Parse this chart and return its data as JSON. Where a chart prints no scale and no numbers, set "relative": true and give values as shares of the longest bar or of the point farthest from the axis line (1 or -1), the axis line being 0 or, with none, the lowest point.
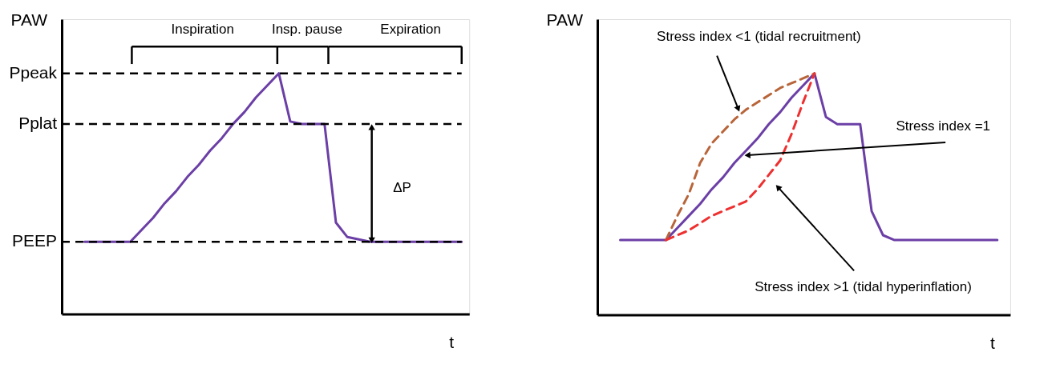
{
  "chart_data": [
    {
      "type": "line",
      "relative": true,
      "ylabel": "PAW",
      "xlabel": "t",
      "tick_labels": false,
      "grid": false,
      "categories": [
        null,
        null,
        null,
        null,
        null,
        null,
        null,
        null,
        null,
        null,
        null,
        null,
        null,
        null,
        null,
        null,
        null,
        null,
        null,
        null,
        null,
        null,
        null,
        null,
        null,
        null,
        null,
        null,
        null,
        null,
        null,
        null,
        null,
        null,
        null,
        null
      ],
      "series": [
        {
          "color": "#6b3fa6",
          "line_style": "solid",
          "values": [
            null,
            null,
            0.3,
            0.3,
            0.3,
            0.3,
            0.3,
            0.35,
            0.4,
            0.46,
            0.51,
            0.57,
            0.62,
            0.68,
            0.73,
            0.79,
            0.84,
            0.9,
            0.95,
            1.0,
            0.8,
            0.79,
            0.79,
            0.79,
            0.38,
            0.32,
            0.31,
            0.3,
            0.3,
            0.3,
            0.3,
            0.3,
            0.3,
            0.3,
            0.3,
            0.3
          ]
        }
      ],
      "ref_lines": [
        {
          "axis": "y",
          "value": 1.0,
          "label": "Ppeak",
          "color": "#000000",
          "line_style": "dashed"
        },
        {
          "axis": "y",
          "value": 0.79,
          "label": "Pplat",
          "color": "#000000",
          "line_style": "dashed"
        },
        {
          "axis": "y",
          "value": 0.3,
          "label": "PEEP",
          "color": "#000000",
          "line_style": "dashed"
        }
      ],
      "annotations": [
        "Inspiration",
        "Insp. pause",
        "Expiration",
        "ΔP"
      ]
    },
    {
      "type": "line",
      "relative": true,
      "ylabel": "PAW",
      "xlabel": "t",
      "tick_labels": false,
      "grid": false,
      "categories": [
        null,
        null,
        null,
        null,
        null,
        null,
        null,
        null,
        null,
        null,
        null,
        null,
        null,
        null,
        null,
        null,
        null,
        null,
        null,
        null,
        null,
        null,
        null,
        null,
        null,
        null,
        null,
        null,
        null,
        null,
        null,
        null,
        null,
        null,
        null,
        null,
        null
      ],
      "series": [
        {
          "color": "#6b3fa6",
          "line_style": "solid",
          "values": [
            null,
            null,
            0.31,
            0.31,
            0.31,
            0.31,
            0.31,
            0.36,
            0.41,
            0.46,
            0.52,
            0.57,
            0.63,
            0.68,
            0.73,
            0.79,
            0.84,
            0.9,
            0.95,
            1.0,
            0.82,
            0.79,
            0.79,
            0.79,
            0.43,
            0.33,
            0.31,
            0.31,
            0.31,
            0.31,
            0.31,
            0.31,
            0.31,
            0.31,
            0.31,
            0.31,
            null
          ]
        },
        {
          "color": "#b8653a",
          "line_style": "dashed",
          "values": [
            null,
            null,
            null,
            null,
            null,
            null,
            0.31,
            0.41,
            0.5,
            0.63,
            0.71,
            0.76,
            0.81,
            0.85,
            0.88,
            0.91,
            0.94,
            0.96,
            0.98,
            1.0,
            null,
            null,
            null,
            null,
            null,
            null,
            null,
            null,
            null,
            null,
            null,
            null,
            null,
            null,
            null,
            null,
            null
          ]
        },
        {
          "color": "#ee3030",
          "line_style": "dashed",
          "values": [
            null,
            null,
            null,
            null,
            null,
            null,
            0.31,
            0.33,
            0.35,
            0.38,
            0.41,
            0.43,
            0.45,
            0.47,
            0.52,
            0.58,
            0.64,
            0.75,
            0.88,
            1.0,
            null,
            null,
            null,
            null,
            null,
            null,
            null,
            null,
            null,
            null,
            null,
            null,
            null,
            null,
            null,
            null,
            null
          ]
        }
      ],
      "annotations": [
        "Stress index <1 (tidal recruitment)",
        "Stress index =1",
        "Stress index >1 (tidal hyperinflation)"
      ]
    }
  ]
}
